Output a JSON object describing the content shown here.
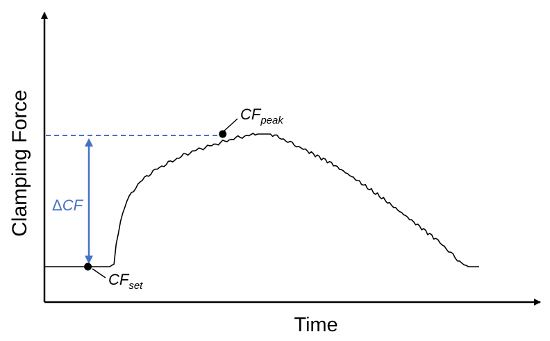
{
  "colors": {
    "curve": "#000000",
    "axis": "#000000",
    "accent": "#4472C4"
  },
  "chart_data": {
    "type": "line",
    "title": "",
    "xlabel": "Time",
    "ylabel": "Clamping Force",
    "ticks": "none",
    "grid": false,
    "series": [
      {
        "name": "",
        "points": [
          [
            0.0,
            0.0
          ],
          [
            0.09,
            0.0
          ],
          [
            0.12,
            0.0
          ],
          [
            0.125,
            0.0
          ],
          [
            0.15,
            0.0
          ],
          [
            0.16,
            0.02
          ],
          [
            0.165,
            0.16
          ],
          [
            0.175,
            0.35
          ],
          [
            0.19,
            0.5
          ],
          [
            0.21,
            0.6
          ],
          [
            0.23,
            0.67
          ],
          [
            0.26,
            0.74
          ],
          [
            0.29,
            0.79
          ],
          [
            0.32,
            0.84
          ],
          [
            0.35,
            0.88
          ],
          [
            0.38,
            0.91
          ],
          [
            0.41,
            0.94
          ],
          [
            0.44,
            0.97
          ],
          [
            0.47,
            0.99
          ],
          [
            0.49,
            1.0
          ],
          [
            0.52,
            1.0
          ],
          [
            0.55,
            0.96
          ],
          [
            0.6,
            0.88
          ],
          [
            0.66,
            0.78
          ],
          [
            0.72,
            0.65
          ],
          [
            0.78,
            0.51
          ],
          [
            0.84,
            0.36
          ],
          [
            0.9,
            0.21
          ],
          [
            0.93,
            0.12
          ],
          [
            0.95,
            0.05
          ],
          [
            0.975,
            0.0
          ],
          [
            1.0,
            0.0
          ]
        ]
      }
    ],
    "annotations": {
      "peak_label_main": "CF",
      "peak_label_sub": "peak",
      "set_label_main": "CF",
      "set_label_sub": "set",
      "delta_symbol": "Δ",
      "delta_label": "CF",
      "set_point": [
        0.1,
        0.0
      ],
      "peak_point": [
        0.41,
        1.0
      ]
    }
  }
}
